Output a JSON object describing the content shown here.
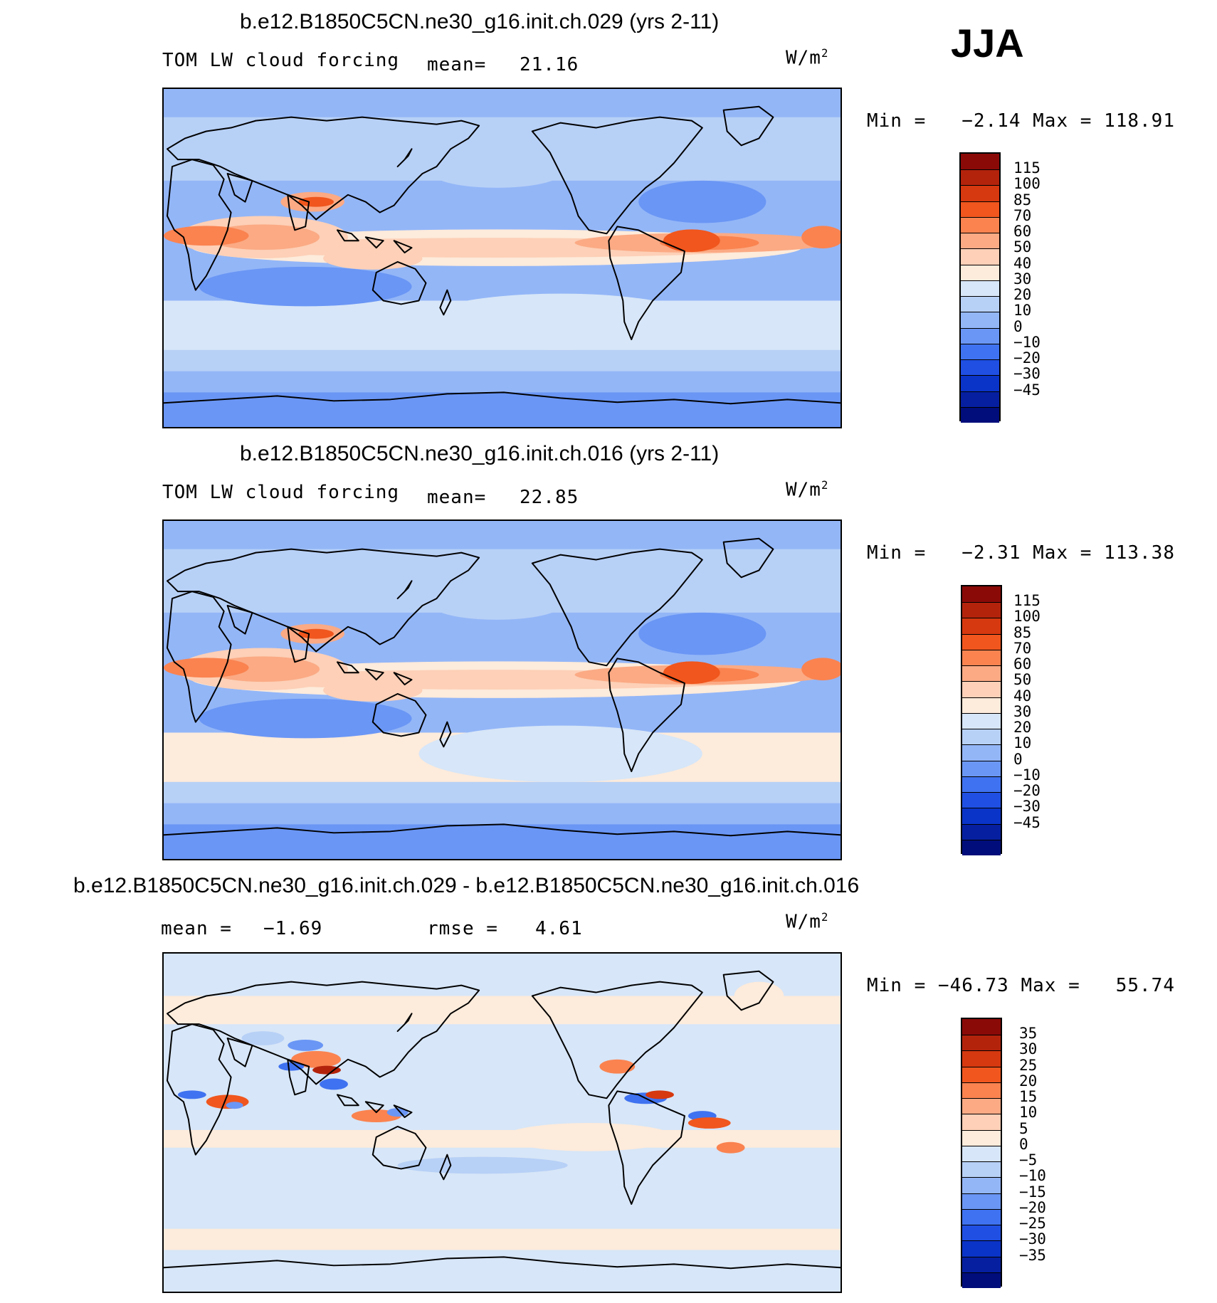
{
  "season": "JJA",
  "units_base": "W/m",
  "units_exp": "2",
  "panels": [
    {
      "title": "b.e12.B1850C5CN.ne30_g16.init.ch.029 (yrs 2-11)",
      "variable": "TOM LW cloud forcing",
      "stat_label": "mean=",
      "stat_value": "21.16",
      "minmax": "Min =   −2.14 Max = 118.91",
      "levels": [
        "115",
        "100",
        "85",
        "70",
        "60",
        "50",
        "40",
        "30",
        "20",
        "10",
        "0",
        "−10",
        "−20",
        "−30",
        "−45"
      ],
      "colors": [
        "#8a0a08",
        "#b3230c",
        "#d6380f",
        "#f0561d",
        "#fa8350",
        "#fbaa84",
        "#fdd0b7",
        "#fdebdb",
        "#d7e6f8",
        "#b7d0f6",
        "#93b6f7",
        "#6a96f5",
        "#3f72f0",
        "#1f4fe3",
        "#0a33c7",
        "#061fa0",
        "#000d7a"
      ]
    },
    {
      "title": "b.e12.B1850C5CN.ne30_g16.init.ch.016 (yrs 2-11)",
      "variable": "TOM LW cloud forcing",
      "stat_label": "mean=",
      "stat_value": "22.85",
      "minmax": "Min =   −2.31 Max = 113.38",
      "levels": [
        "115",
        "100",
        "85",
        "70",
        "60",
        "50",
        "40",
        "30",
        "20",
        "10",
        "0",
        "−10",
        "−20",
        "−30",
        "−45"
      ],
      "colors": [
        "#8a0a08",
        "#b3230c",
        "#d6380f",
        "#f0561d",
        "#fa8350",
        "#fbaa84",
        "#fdd0b7",
        "#fdebdb",
        "#d7e6f8",
        "#b7d0f6",
        "#93b6f7",
        "#6a96f5",
        "#3f72f0",
        "#1f4fe3",
        "#0a33c7",
        "#061fa0",
        "#000d7a"
      ]
    },
    {
      "title": "b.e12.B1850C5CN.ne30_g16.init.ch.029 - b.e12.B1850C5CN.ne30_g16.init.ch.016",
      "mean_label": "mean =",
      "mean_value": "−1.69",
      "rmse_label": "rmse =",
      "rmse_value": "4.61",
      "minmax": "Min = −46.73 Max =   55.74",
      "levels": [
        "35",
        "30",
        "25",
        "20",
        "15",
        "10",
        "5",
        "0",
        "−5",
        "−10",
        "−15",
        "−20",
        "−25",
        "−30",
        "−35"
      ],
      "colors": [
        "#8a0a08",
        "#b3230c",
        "#d6380f",
        "#f0561d",
        "#fa8350",
        "#fbaa84",
        "#fdd0b7",
        "#fdebdb",
        "#d7e6f8",
        "#b7d0f6",
        "#93b6f7",
        "#6a96f5",
        "#3f72f0",
        "#1f4fe3",
        "#0a33c7",
        "#061fa0",
        "#000d7a"
      ]
    }
  ]
}
